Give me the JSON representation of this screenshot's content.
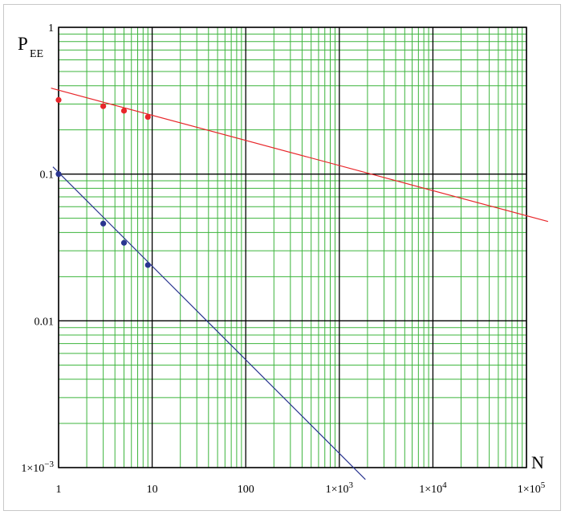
{
  "chart_data": {
    "type": "line",
    "title": "",
    "xlabel": "N",
    "ylabel": {
      "main": "P",
      "sub": "EE"
    },
    "x_scale": "log",
    "y_scale": "log",
    "xlim": [
      1,
      100000
    ],
    "ylim": [
      0.001,
      1
    ],
    "grid": true,
    "x_ticks": [
      {
        "value": 1,
        "label": "1"
      },
      {
        "value": 10,
        "label": "10"
      },
      {
        "value": 100,
        "label": "100"
      },
      {
        "value": 1000,
        "label": "1×10",
        "exp": "3"
      },
      {
        "value": 10000,
        "label": "1×10",
        "exp": "4"
      },
      {
        "value": 100000,
        "label": "1×10",
        "exp": "5"
      }
    ],
    "y_ticks": [
      {
        "value": 1,
        "label": "1"
      },
      {
        "value": 0.1,
        "label": "0.1"
      },
      {
        "value": 0.01,
        "label": "0.01"
      },
      {
        "value": 0.001,
        "label": "1×10",
        "exp": "−3"
      }
    ],
    "series": [
      {
        "color": "#e8262a",
        "points": [
          {
            "x": 1,
            "y": 0.32
          },
          {
            "x": 3,
            "y": 0.29
          },
          {
            "x": 5,
            "y": 0.27
          },
          {
            "x": 9,
            "y": 0.245
          }
        ],
        "fit": [
          {
            "x": 0.83,
            "y": 0.385
          },
          {
            "x": 170000,
            "y": 0.0475
          }
        ]
      },
      {
        "color": "#2a3590",
        "points": [
          {
            "x": 1,
            "y": 0.1
          },
          {
            "x": 3,
            "y": 0.046
          },
          {
            "x": 5,
            "y": 0.034
          },
          {
            "x": 9,
            "y": 0.024
          }
        ],
        "fit": [
          {
            "x": 0.87,
            "y": 0.112
          },
          {
            "x": 1900,
            "y": 0.00083
          }
        ]
      }
    ],
    "colors": {
      "grid_minor": "#3cb43c",
      "grid_major": "#000000"
    }
  }
}
